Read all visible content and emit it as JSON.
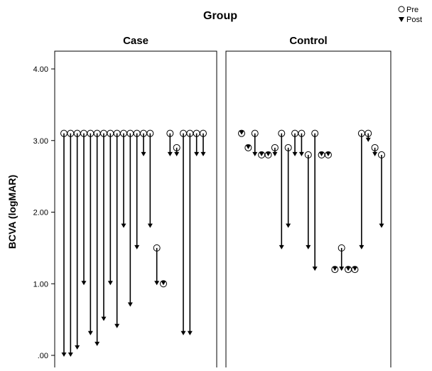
{
  "chart_data": {
    "type": "scatter",
    "title": "Group",
    "ylabel": "BCVA (logMAR)",
    "xlabel": "",
    "ylim": [
      0,
      4.25
    ],
    "yticks": [
      0,
      1,
      2,
      3,
      4
    ],
    "ytick_labels": [
      ".00",
      "1.00",
      "2.00",
      "3.00",
      "4.00"
    ],
    "legend": {
      "position": "top-right",
      "entries": [
        {
          "label": "Pre",
          "marker": "open-circle"
        },
        {
          "label": "Post",
          "marker": "filled-triangle-down"
        }
      ]
    },
    "panels": [
      {
        "name": "Case",
        "subjects": [
          {
            "pre": 3.1,
            "post": 0.0
          },
          {
            "pre": 3.1,
            "post": 0.0
          },
          {
            "pre": 3.1,
            "post": 0.1
          },
          {
            "pre": 3.1,
            "post": 1.0
          },
          {
            "pre": 3.1,
            "post": 0.3
          },
          {
            "pre": 3.1,
            "post": 0.15
          },
          {
            "pre": 3.1,
            "post": 0.5
          },
          {
            "pre": 3.1,
            "post": 1.0
          },
          {
            "pre": 3.1,
            "post": 0.4
          },
          {
            "pre": 3.1,
            "post": 1.8
          },
          {
            "pre": 3.1,
            "post": 0.7
          },
          {
            "pre": 3.1,
            "post": 1.5
          },
          {
            "pre": 3.1,
            "post": 2.8
          },
          {
            "pre": 3.1,
            "post": 1.8
          },
          {
            "pre": 1.5,
            "post": 1.0
          },
          {
            "pre": 1.0,
            "post": 1.0
          },
          {
            "pre": 3.1,
            "post": 2.8
          },
          {
            "pre": 2.9,
            "post": 2.8
          },
          {
            "pre": 3.1,
            "post": 0.3
          },
          {
            "pre": 3.1,
            "post": 0.3
          },
          {
            "pre": 3.1,
            "post": 2.8
          },
          {
            "pre": 3.1,
            "post": 2.8
          }
        ]
      },
      {
        "name": "Control",
        "subjects": [
          {
            "pre": 3.1,
            "post": 3.1
          },
          {
            "pre": 2.9,
            "post": 2.9
          },
          {
            "pre": 3.1,
            "post": 2.8
          },
          {
            "pre": 2.8,
            "post": 2.8
          },
          {
            "pre": 2.8,
            "post": 2.8
          },
          {
            "pre": 2.9,
            "post": 2.8
          },
          {
            "pre": 3.1,
            "post": 1.5
          },
          {
            "pre": 2.9,
            "post": 1.8
          },
          {
            "pre": 3.1,
            "post": 2.8
          },
          {
            "pre": 3.1,
            "post": 2.8
          },
          {
            "pre": 2.8,
            "post": 1.5
          },
          {
            "pre": 3.1,
            "post": 1.2
          },
          {
            "pre": 2.8,
            "post": 2.8
          },
          {
            "pre": 2.8,
            "post": 2.8
          },
          {
            "pre": 1.2,
            "post": 1.2
          },
          {
            "pre": 1.5,
            "post": 1.2
          },
          {
            "pre": 1.2,
            "post": 1.2
          },
          {
            "pre": 1.2,
            "post": 1.2
          },
          {
            "pre": 3.1,
            "post": 1.5
          },
          {
            "pre": 3.1,
            "post": 3.0
          },
          {
            "pre": 2.9,
            "post": 2.8
          },
          {
            "pre": 2.8,
            "post": 1.8
          }
        ]
      }
    ]
  }
}
